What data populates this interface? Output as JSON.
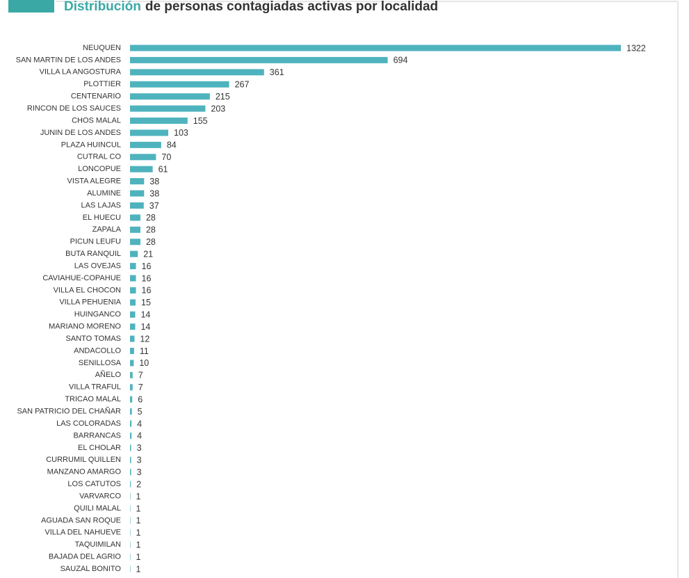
{
  "chart_data": {
    "type": "hbar",
    "title": {
      "highlight": "Distribución",
      "rest": "de personas contagiadas activas por localidad"
    },
    "color": "#4fb3be",
    "categories": [
      "NEUQUEN",
      "SAN MARTIN DE LOS ANDES",
      "VILLA LA ANGOSTURA",
      "PLOTTIER",
      "CENTENARIO",
      "RINCON DE LOS SAUCES",
      "CHOS MALAL",
      "JUNIN DE LOS ANDES",
      "PLAZA HUINCUL",
      "CUTRAL CO",
      "LONCOPUE",
      "VISTA ALEGRE",
      "ALUMINE",
      "LAS LAJAS",
      "EL HUECU",
      "ZAPALA",
      "PICUN LEUFU",
      "BUTA RANQUIL",
      "LAS OVEJAS",
      "CAVIAHUE-COPAHUE",
      "VILLA EL CHOCON",
      "VILLA PEHUENIA",
      "HUINGANCO",
      "MARIANO MORENO",
      "SANTO TOMAS",
      "ANDACOLLO",
      "SENILLOSA",
      "AÑELO",
      "VILLA TRAFUL",
      "TRICAO MALAL",
      "SAN PATRICIO DEL CHAÑAR",
      "LAS COLORADAS",
      "BARRANCAS",
      "EL CHOLAR",
      "CURRUMIL QUILLEN",
      "MANZANO AMARGO",
      "LOS CATUTOS",
      "VARVARCO",
      "QUILI MALAL",
      "AGUADA SAN ROQUE",
      "VILLA DEL NAHUEVE",
      "TAQUIMILAN",
      "BAJADA DEL AGRIO",
      "SAUZAL BONITO"
    ],
    "values": [
      1322,
      694,
      361,
      267,
      215,
      203,
      155,
      103,
      84,
      70,
      61,
      38,
      38,
      37,
      28,
      28,
      28,
      21,
      16,
      16,
      16,
      15,
      14,
      14,
      12,
      11,
      10,
      7,
      7,
      6,
      5,
      4,
      4,
      3,
      3,
      3,
      2,
      1,
      1,
      1,
      1,
      1,
      1,
      1
    ]
  }
}
